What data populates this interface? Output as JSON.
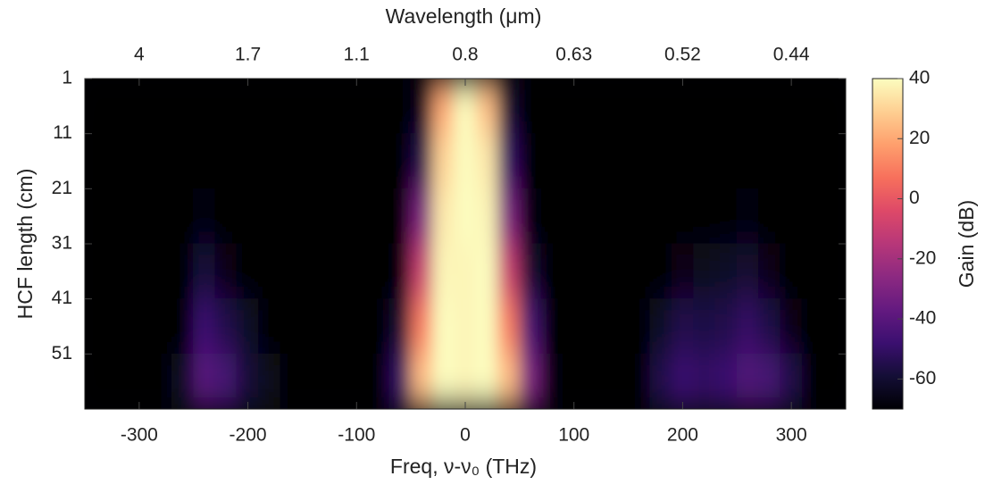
{
  "chart_data": {
    "type": "heatmap",
    "title": "Wavelength (μm)",
    "xlabel": "Freq, ν-ν₀ (THz)",
    "ylabel": "HCF length (cm)",
    "colorbar_label": "Gain (dB)",
    "colormap": "magma",
    "xlim": [
      -350,
      350
    ],
    "xticks": [
      -300,
      -200,
      -100,
      0,
      100,
      200,
      300
    ],
    "x2ticks": [
      {
        "value": -300,
        "label": "4"
      },
      {
        "value": -200,
        "label": "1.7"
      },
      {
        "value": -100,
        "label": "1.1"
      },
      {
        "value": 0,
        "label": "0.8"
      },
      {
        "value": 100,
        "label": "0.63"
      },
      {
        "value": 200,
        "label": "0.52"
      },
      {
        "value": 300,
        "label": "0.44"
      }
    ],
    "ylim": [
      1,
      61
    ],
    "y_reversed": true,
    "yticks": [
      1,
      11,
      21,
      31,
      41,
      51
    ],
    "zlim": [
      -70,
      40
    ],
    "zticks": [
      -60,
      -40,
      -20,
      0,
      20,
      40
    ],
    "x": [
      -340,
      -320,
      -300,
      -280,
      -260,
      -240,
      -220,
      -200,
      -180,
      -160,
      -140,
      -120,
      -100,
      -80,
      -60,
      -40,
      -20,
      0,
      20,
      40,
      60,
      80,
      100,
      120,
      140,
      160,
      180,
      200,
      220,
      240,
      260,
      280,
      300,
      320,
      340
    ],
    "y": [
      6,
      16,
      26,
      36,
      46,
      56
    ],
    "z": [
      [
        -70,
        -70,
        -70,
        -70,
        -70,
        -70,
        -70,
        -70,
        -70,
        -70,
        -70,
        -70,
        -70,
        -70,
        -70,
        -65,
        20,
        40,
        25,
        -60,
        -70,
        -70,
        -70,
        -70,
        -70,
        -70,
        -70,
        -70,
        -70,
        -70,
        -70,
        -70,
        -70,
        -70,
        -70
      ],
      [
        -70,
        -70,
        -70,
        -70,
        -70,
        -70,
        -70,
        -70,
        -70,
        -70,
        -70,
        -70,
        -70,
        -70,
        -70,
        -55,
        30,
        40,
        35,
        -50,
        -70,
        -70,
        -70,
        -70,
        -70,
        -70,
        -70,
        -70,
        -70,
        -70,
        -70,
        -70,
        -70,
        -70,
        -70
      ],
      [
        -70,
        -70,
        -70,
        -70,
        -70,
        -68,
        -70,
        -70,
        -70,
        -70,
        -70,
        -70,
        -70,
        -70,
        -70,
        -30,
        35,
        40,
        38,
        -30,
        -68,
        -70,
        -70,
        -70,
        -70,
        -70,
        -70,
        -70,
        -70,
        -70,
        -68,
        -70,
        -70,
        -70,
        -70
      ],
      [
        -70,
        -70,
        -70,
        -70,
        -70,
        -58,
        -66,
        -70,
        -70,
        -70,
        -70,
        -70,
        -70,
        -70,
        -68,
        -10,
        38,
        38,
        40,
        -10,
        -60,
        -70,
        -70,
        -70,
        -70,
        -70,
        -70,
        -66,
        -64,
        -62,
        -60,
        -66,
        -70,
        -70,
        -70
      ],
      [
        -70,
        -70,
        -70,
        -70,
        -70,
        -48,
        -55,
        -62,
        -70,
        -70,
        -70,
        -70,
        -70,
        -70,
        -60,
        10,
        40,
        38,
        40,
        10,
        -45,
        -70,
        -70,
        -70,
        -70,
        -70,
        -62,
        -55,
        -56,
        -55,
        -50,
        -56,
        -66,
        -70,
        -70
      ],
      [
        -70,
        -70,
        -70,
        -70,
        -62,
        -40,
        -45,
        -58,
        -64,
        -70,
        -70,
        -70,
        -70,
        -70,
        -50,
        25,
        40,
        38,
        40,
        25,
        -30,
        -68,
        -70,
        -70,
        -70,
        -70,
        -55,
        -48,
        -50,
        -48,
        -42,
        -45,
        -55,
        -70,
        -70
      ]
    ]
  }
}
